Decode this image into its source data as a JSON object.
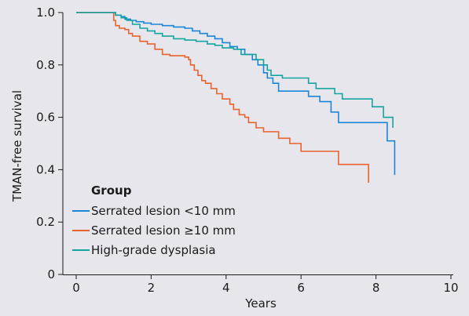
{
  "chart_data": {
    "type": "line",
    "xlabel": "Years",
    "ylabel": "TMAN-free survival",
    "xlim": [
      0,
      10
    ],
    "ylim": [
      0,
      1.0
    ],
    "x_ticks": [
      0,
      2,
      4,
      6,
      8,
      10
    ],
    "y_ticks": [
      0,
      0.2,
      0.4,
      0.6,
      0.8,
      1.0
    ],
    "x_tick_labels": [
      "0",
      "2",
      "4",
      "6",
      "8",
      "10"
    ],
    "y_tick_labels": [
      "0",
      "0.2",
      "0.4",
      "0.6",
      "0.8",
      "1.0"
    ],
    "grid": false,
    "legend": {
      "title": "Group",
      "placement": "bottom-left"
    },
    "series": [
      {
        "name": "Serrated lesion <10 mm",
        "color": "#1a86d8",
        "step": true,
        "points": [
          [
            0,
            1.0
          ],
          [
            1.0,
            1.0
          ],
          [
            1.05,
            0.99
          ],
          [
            1.2,
            0.985
          ],
          [
            1.3,
            0.975
          ],
          [
            1.45,
            0.97
          ],
          [
            1.6,
            0.965
          ],
          [
            1.8,
            0.96
          ],
          [
            2.0,
            0.955
          ],
          [
            2.3,
            0.95
          ],
          [
            2.6,
            0.945
          ],
          [
            2.9,
            0.94
          ],
          [
            3.1,
            0.93
          ],
          [
            3.3,
            0.92
          ],
          [
            3.5,
            0.91
          ],
          [
            3.7,
            0.9
          ],
          [
            3.9,
            0.885
          ],
          [
            4.1,
            0.87
          ],
          [
            4.3,
            0.86
          ],
          [
            4.5,
            0.84
          ],
          [
            4.7,
            0.82
          ],
          [
            4.85,
            0.8
          ],
          [
            5.0,
            0.77
          ],
          [
            5.1,
            0.75
          ],
          [
            5.25,
            0.73
          ],
          [
            5.4,
            0.7
          ],
          [
            6.2,
            0.68
          ],
          [
            6.5,
            0.66
          ],
          [
            6.8,
            0.62
          ],
          [
            7.0,
            0.58
          ],
          [
            7.8,
            0.58
          ],
          [
            7.85,
            0.58
          ],
          [
            8.0,
            0.58
          ],
          [
            8.1,
            0.58
          ],
          [
            8.2,
            0.58
          ],
          [
            7.9,
            0.58
          ],
          [
            8.3,
            0.51
          ],
          [
            8.45,
            0.51
          ],
          [
            8.5,
            0.38
          ]
        ]
      },
      {
        "name": "Serrated lesion ≥10 mm",
        "color": "#e8642c",
        "step": true,
        "points": [
          [
            0,
            1.0
          ],
          [
            0.9,
            1.0
          ],
          [
            1.0,
            0.97
          ],
          [
            1.05,
            0.95
          ],
          [
            1.15,
            0.94
          ],
          [
            1.3,
            0.935
          ],
          [
            1.4,
            0.92
          ],
          [
            1.5,
            0.91
          ],
          [
            1.7,
            0.89
          ],
          [
            1.9,
            0.88
          ],
          [
            2.1,
            0.86
          ],
          [
            2.3,
            0.84
          ],
          [
            2.5,
            0.835
          ],
          [
            2.9,
            0.83
          ],
          [
            3.0,
            0.82
          ],
          [
            3.05,
            0.8
          ],
          [
            3.15,
            0.78
          ],
          [
            3.25,
            0.76
          ],
          [
            3.35,
            0.74
          ],
          [
            3.45,
            0.73
          ],
          [
            3.6,
            0.71
          ],
          [
            3.75,
            0.69
          ],
          [
            3.9,
            0.67
          ],
          [
            4.1,
            0.65
          ],
          [
            4.2,
            0.63
          ],
          [
            4.35,
            0.61
          ],
          [
            4.5,
            0.6
          ],
          [
            4.6,
            0.58
          ],
          [
            4.8,
            0.56
          ],
          [
            5.0,
            0.545
          ],
          [
            5.4,
            0.52
          ],
          [
            5.7,
            0.5
          ],
          [
            6.0,
            0.47
          ],
          [
            6.5,
            0.47
          ],
          [
            7.0,
            0.42
          ],
          [
            7.5,
            0.42
          ],
          [
            7.8,
            0.42
          ],
          [
            7.8,
            0.35
          ]
        ]
      },
      {
        "name": "High-grade dysplasia",
        "color": "#14a59e",
        "step": true,
        "points": [
          [
            0,
            1.0
          ],
          [
            1.0,
            1.0
          ],
          [
            1.05,
            0.99
          ],
          [
            1.2,
            0.98
          ],
          [
            1.35,
            0.97
          ],
          [
            1.5,
            0.955
          ],
          [
            1.7,
            0.94
          ],
          [
            1.9,
            0.93
          ],
          [
            2.1,
            0.92
          ],
          [
            2.3,
            0.91
          ],
          [
            2.6,
            0.9
          ],
          [
            2.9,
            0.895
          ],
          [
            3.2,
            0.89
          ],
          [
            3.5,
            0.88
          ],
          [
            3.7,
            0.875
          ],
          [
            3.9,
            0.865
          ],
          [
            4.2,
            0.86
          ],
          [
            4.4,
            0.84
          ],
          [
            4.8,
            0.82
          ],
          [
            5.0,
            0.8
          ],
          [
            5.1,
            0.78
          ],
          [
            5.2,
            0.76
          ],
          [
            5.5,
            0.75
          ],
          [
            6.0,
            0.75
          ],
          [
            6.2,
            0.73
          ],
          [
            6.4,
            0.71
          ],
          [
            6.9,
            0.69
          ],
          [
            7.1,
            0.67
          ],
          [
            7.7,
            0.67
          ],
          [
            7.9,
            0.64
          ],
          [
            8.2,
            0.6
          ],
          [
            8.45,
            0.6
          ],
          [
            8.45,
            0.56
          ]
        ]
      }
    ]
  }
}
